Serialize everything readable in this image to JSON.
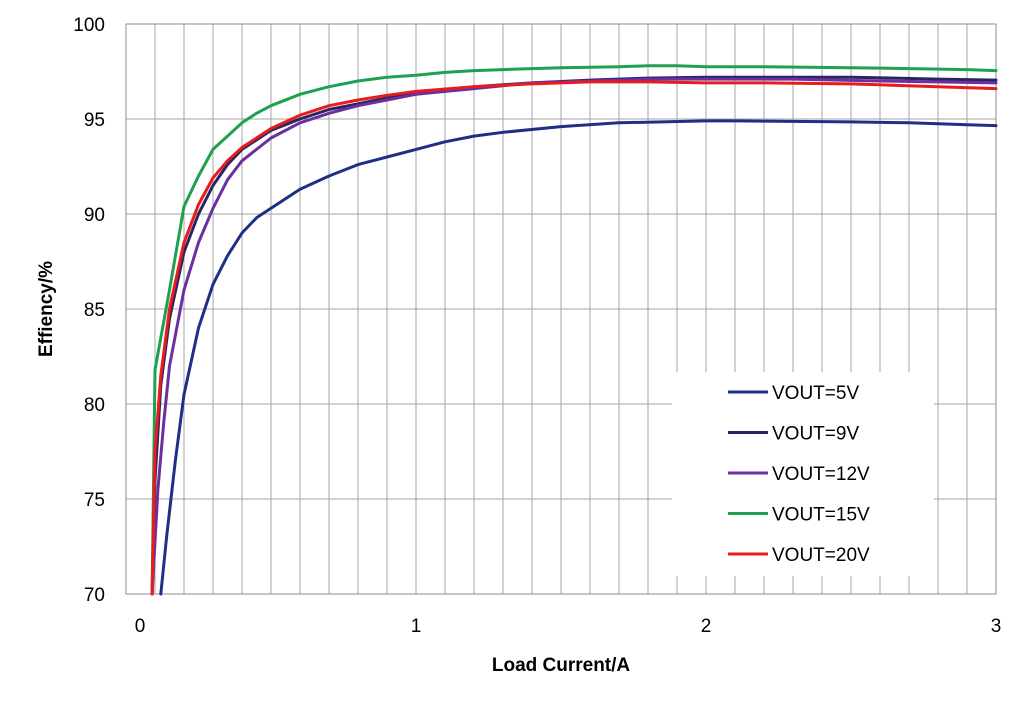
{
  "chart_data": {
    "type": "line",
    "title": "",
    "xlabel": "Load Current/A",
    "ylabel": "Effiency/%",
    "xlim": [
      0,
      3
    ],
    "ylim": [
      70,
      100
    ],
    "x_ticks": [
      "0",
      "1",
      "2",
      "3"
    ],
    "y_ticks": [
      "70",
      "75",
      "80",
      "85",
      "90",
      "95",
      "100"
    ],
    "grid": true,
    "legend_position": "bottom-right",
    "series": [
      {
        "name": "VOUT=5V",
        "color": "#1F2F86",
        "x": [
          0.12,
          0.14,
          0.17,
          0.2,
          0.25,
          0.3,
          0.35,
          0.4,
          0.45,
          0.5,
          0.6,
          0.7,
          0.8,
          0.9,
          1.0,
          1.1,
          1.2,
          1.3,
          1.5,
          1.7,
          2.0,
          2.1,
          2.5,
          2.7,
          2.9,
          3.0
        ],
        "y": [
          70.0,
          73.0,
          77.0,
          80.5,
          84.0,
          86.3,
          87.8,
          89.0,
          89.8,
          90.3,
          91.3,
          92.0,
          92.6,
          93.0,
          93.4,
          93.8,
          94.1,
          94.3,
          94.6,
          94.8,
          94.9,
          94.9,
          94.85,
          94.8,
          94.7,
          94.65
        ]
      },
      {
        "name": "VOUT=9V",
        "color": "#2B2362",
        "x": [
          0.09,
          0.1,
          0.12,
          0.15,
          0.2,
          0.25,
          0.3,
          0.35,
          0.4,
          0.5,
          0.6,
          0.7,
          0.8,
          0.9,
          1.0,
          1.2,
          1.4,
          1.6,
          1.8,
          2.0,
          2.2,
          2.5,
          2.8,
          3.0
        ],
        "y": [
          70.0,
          76.0,
          81.0,
          84.5,
          88.0,
          90.0,
          91.5,
          92.6,
          93.4,
          94.4,
          95.0,
          95.5,
          95.8,
          96.1,
          96.4,
          96.7,
          96.9,
          97.05,
          97.15,
          97.2,
          97.2,
          97.2,
          97.1,
          97.05
        ]
      },
      {
        "name": "VOUT=12V",
        "color": "#6B2FA0",
        "x": [
          0.09,
          0.11,
          0.13,
          0.15,
          0.2,
          0.25,
          0.3,
          0.35,
          0.4,
          0.5,
          0.6,
          0.7,
          0.8,
          0.9,
          1.0,
          1.2,
          1.4,
          1.6,
          1.8,
          2.0,
          2.3,
          2.6,
          3.0
        ],
        "y": [
          70.0,
          75.5,
          79.0,
          82.0,
          86.0,
          88.5,
          90.3,
          91.8,
          92.8,
          94.0,
          94.8,
          95.3,
          95.7,
          96.0,
          96.3,
          96.6,
          96.9,
          97.0,
          97.1,
          97.1,
          97.1,
          97.0,
          96.9
        ]
      },
      {
        "name": "VOUT=15V",
        "color": "#1EA050",
        "x": [
          0.09,
          0.1,
          0.15,
          0.2,
          0.25,
          0.3,
          0.35,
          0.4,
          0.45,
          0.5,
          0.6,
          0.7,
          0.8,
          0.9,
          1.0,
          1.1,
          1.2,
          1.3,
          1.5,
          1.7,
          1.8,
          1.9,
          2.0,
          2.2,
          2.5,
          2.7,
          2.9,
          3.0
        ],
        "y": [
          70.0,
          81.8,
          86.0,
          90.4,
          92.0,
          93.4,
          94.1,
          94.8,
          95.3,
          95.7,
          96.3,
          96.7,
          97.0,
          97.2,
          97.3,
          97.45,
          97.55,
          97.6,
          97.7,
          97.75,
          97.8,
          97.8,
          97.75,
          97.75,
          97.7,
          97.65,
          97.6,
          97.55
        ]
      },
      {
        "name": "VOUT=20V",
        "color": "#E81C1C",
        "x": [
          0.09,
          0.1,
          0.12,
          0.15,
          0.2,
          0.25,
          0.3,
          0.35,
          0.4,
          0.5,
          0.6,
          0.7,
          0.8,
          0.9,
          1.0,
          1.2,
          1.4,
          1.6,
          1.8,
          2.0,
          2.2,
          2.5,
          2.8,
          3.0
        ],
        "y": [
          70.0,
          77.5,
          81.5,
          85.0,
          88.5,
          90.5,
          91.9,
          92.8,
          93.5,
          94.5,
          95.2,
          95.7,
          96.0,
          96.25,
          96.45,
          96.7,
          96.85,
          96.95,
          96.95,
          96.9,
          96.9,
          96.85,
          96.7,
          96.6
        ]
      }
    ]
  }
}
